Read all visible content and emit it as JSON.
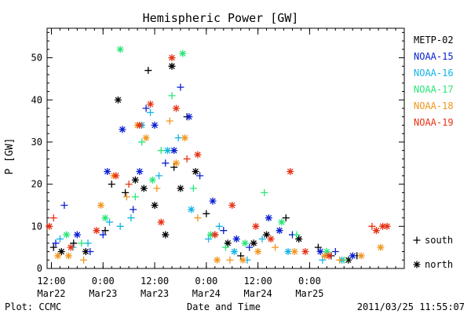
{
  "chart_data": {
    "type": "scatter",
    "title": "Hemispheric Power [GW]",
    "xlabel": "Date and Time",
    "ylabel": "P [GW]",
    "ylim": [
      0,
      57
    ],
    "xlim": [
      "2011-03-22T11:00",
      "2011-03-25T22:00"
    ],
    "grid": false,
    "legend_position": "right",
    "x_ticks": [
      {
        "time": "2011-03-22T12:00",
        "line1": "12:00",
        "line2": "Mar22"
      },
      {
        "time": "2011-03-23T00:00",
        "line1": "0:00",
        "line2": "Mar23"
      },
      {
        "time": "2011-03-23T12:00",
        "line1": "12:00",
        "line2": "Mar23"
      },
      {
        "time": "2011-03-24T00:00",
        "line1": "0:00",
        "line2": "Mar24"
      },
      {
        "time": "2011-03-24T12:00",
        "line1": "12:00",
        "line2": "Mar24"
      },
      {
        "time": "2011-03-25T00:00",
        "line1": "0:00",
        "line2": "Mar25"
      }
    ],
    "y_ticks": [
      0,
      10,
      20,
      30,
      40,
      50
    ],
    "marker_legend": [
      {
        "marker": "+",
        "label": "south"
      },
      {
        "marker": "*",
        "label": "north"
      }
    ],
    "series": [
      {
        "name": "METP-02",
        "color": "#000000",
        "points": [
          [
            "2011-03-22T12:30",
            5,
            "+"
          ],
          [
            "2011-03-22T14:20",
            4,
            "*"
          ],
          [
            "2011-03-22T17:10",
            6,
            "+"
          ],
          [
            "2011-03-22T20:00",
            4,
            "*"
          ],
          [
            "2011-03-23T00:30",
            9,
            "+"
          ],
          [
            "2011-03-23T02:00",
            20,
            "+"
          ],
          [
            "2011-03-23T03:30",
            40,
            "*"
          ],
          [
            "2011-03-23T05:10",
            18,
            "+"
          ],
          [
            "2011-03-23T07:30",
            21,
            "*"
          ],
          [
            "2011-03-23T09:30",
            19,
            "*"
          ],
          [
            "2011-03-23T10:30",
            47,
            "+"
          ],
          [
            "2011-03-23T12:00",
            15,
            "*"
          ],
          [
            "2011-03-23T14:30",
            8,
            "*"
          ],
          [
            "2011-03-23T16:00",
            48,
            "*"
          ],
          [
            "2011-03-23T16:30",
            24,
            "+"
          ],
          [
            "2011-03-23T18:00",
            19,
            "*"
          ],
          [
            "2011-03-23T19:30",
            36,
            "+"
          ],
          [
            "2011-03-23T21:30",
            23,
            "*"
          ],
          [
            "2011-03-24T00:00",
            13,
            "+"
          ],
          [
            "2011-03-24T02:00",
            8,
            "+"
          ],
          [
            "2011-03-24T05:00",
            6,
            "*"
          ],
          [
            "2011-03-24T08:00",
            3,
            "+"
          ],
          [
            "2011-03-24T11:00",
            6,
            "*"
          ],
          [
            "2011-03-24T14:00",
            8,
            "*"
          ],
          [
            "2011-03-24T18:30",
            12,
            "+"
          ],
          [
            "2011-03-24T21:30",
            7,
            "*"
          ],
          [
            "2011-03-25T02:00",
            5,
            "+"
          ],
          [
            "2011-03-25T05:00",
            3,
            "+"
          ],
          [
            "2011-03-25T09:00",
            2,
            "*"
          ],
          [
            "2011-03-25T11:00",
            3,
            "+"
          ]
        ]
      },
      {
        "name": "NOAA-15",
        "color": "#0a1ed2",
        "points": [
          [
            "2011-03-22T13:00",
            6,
            "+"
          ],
          [
            "2011-03-22T15:00",
            15,
            "+"
          ],
          [
            "2011-03-22T18:00",
            8,
            "*"
          ],
          [
            "2011-03-22T21:00",
            4,
            "+"
          ],
          [
            "2011-03-23T00:00",
            8,
            "+"
          ],
          [
            "2011-03-23T01:00",
            23,
            "*"
          ],
          [
            "2011-03-23T04:30",
            33,
            "*"
          ],
          [
            "2011-03-23T07:00",
            14,
            "+"
          ],
          [
            "2011-03-23T08:30",
            23,
            "*"
          ],
          [
            "2011-03-23T10:00",
            38,
            "+"
          ],
          [
            "2011-03-23T12:00",
            34,
            "*"
          ],
          [
            "2011-03-23T14:30",
            25,
            "+"
          ],
          [
            "2011-03-23T16:30",
            28,
            "*"
          ],
          [
            "2011-03-23T18:00",
            43,
            "+"
          ],
          [
            "2011-03-23T20:00",
            36,
            "*"
          ],
          [
            "2011-03-23T22:30",
            22,
            "+"
          ],
          [
            "2011-03-24T01:30",
            16,
            "*"
          ],
          [
            "2011-03-24T04:00",
            9,
            "+"
          ],
          [
            "2011-03-24T07:00",
            7,
            "*"
          ],
          [
            "2011-03-24T10:00",
            5,
            "+"
          ],
          [
            "2011-03-24T14:30",
            12,
            "*"
          ],
          [
            "2011-03-24T17:00",
            9,
            "*"
          ],
          [
            "2011-03-24T20:00",
            8,
            "+"
          ],
          [
            "2011-03-25T02:30",
            4,
            "*"
          ],
          [
            "2011-03-25T06:00",
            4,
            "+"
          ],
          [
            "2011-03-25T10:00",
            3,
            "*"
          ]
        ]
      },
      {
        "name": "NOAA-16",
        "color": "#14b4e6",
        "points": [
          [
            "2011-03-22T14:00",
            7,
            "+"
          ],
          [
            "2011-03-22T17:00",
            5,
            "+"
          ],
          [
            "2011-03-22T20:30",
            6,
            "+"
          ],
          [
            "2011-03-23T01:30",
            11,
            "+"
          ],
          [
            "2011-03-23T04:00",
            10,
            "+"
          ],
          [
            "2011-03-23T06:30",
            12,
            "+"
          ],
          [
            "2011-03-23T09:00",
            34,
            "*"
          ],
          [
            "2011-03-23T11:00",
            37,
            "+"
          ],
          [
            "2011-03-23T13:00",
            22,
            "+"
          ],
          [
            "2011-03-23T15:00",
            28,
            "*"
          ],
          [
            "2011-03-23T17:30",
            31,
            "+"
          ],
          [
            "2011-03-23T20:30",
            14,
            "*"
          ],
          [
            "2011-03-24T00:30",
            7,
            "+"
          ],
          [
            "2011-03-24T03:00",
            10,
            "+"
          ],
          [
            "2011-03-24T06:30",
            4,
            "*"
          ],
          [
            "2011-03-24T09:30",
            2,
            "+"
          ],
          [
            "2011-03-24T13:00",
            7,
            "+"
          ],
          [
            "2011-03-24T19:00",
            4,
            "*"
          ],
          [
            "2011-03-25T03:00",
            2,
            "+"
          ],
          [
            "2011-03-25T07:30",
            2,
            "*"
          ]
        ]
      },
      {
        "name": "NOAA-17",
        "color": "#28e678",
        "points": [
          [
            "2011-03-22T15:30",
            8,
            "*"
          ],
          [
            "2011-03-22T19:00",
            6,
            "+"
          ],
          [
            "2011-03-23T00:30",
            12,
            "*"
          ],
          [
            "2011-03-23T04:00",
            52,
            "*"
          ],
          [
            "2011-03-23T07:30",
            17,
            "+"
          ],
          [
            "2011-03-23T09:00",
            30,
            "+"
          ],
          [
            "2011-03-23T11:30",
            21,
            "*"
          ],
          [
            "2011-03-23T13:30",
            28,
            "+"
          ],
          [
            "2011-03-23T16:00",
            41,
            "+"
          ],
          [
            "2011-03-23T18:30",
            51,
            "*"
          ],
          [
            "2011-03-23T21:00",
            19,
            "+"
          ],
          [
            "2011-03-24T01:00",
            8,
            "*"
          ],
          [
            "2011-03-24T04:30",
            5,
            "+"
          ],
          [
            "2011-03-24T09:00",
            6,
            "*"
          ],
          [
            "2011-03-24T13:30",
            18,
            "+"
          ],
          [
            "2011-03-24T17:30",
            11,
            "*"
          ],
          [
            "2011-03-24T21:00",
            8,
            "+"
          ],
          [
            "2011-03-25T04:00",
            4,
            "*"
          ],
          [
            "2011-03-25T08:00",
            2,
            "+"
          ]
        ]
      },
      {
        "name": "NOAA-18",
        "color": "#f0961e",
        "points": [
          [
            "2011-03-22T13:30",
            3,
            "*"
          ],
          [
            "2011-03-22T16:00",
            3,
            "*"
          ],
          [
            "2011-03-22T19:30",
            2,
            "+"
          ],
          [
            "2011-03-22T23:30",
            15,
            "*"
          ],
          [
            "2011-03-23T02:30",
            22,
            "*"
          ],
          [
            "2011-03-23T05:30",
            17,
            "+"
          ],
          [
            "2011-03-23T08:00",
            34,
            "*"
          ],
          [
            "2011-03-23T10:00",
            31,
            "*"
          ],
          [
            "2011-03-23T12:30",
            19,
            "+"
          ],
          [
            "2011-03-23T15:30",
            35,
            "+"
          ],
          [
            "2011-03-23T17:00",
            25,
            "*"
          ],
          [
            "2011-03-23T19:00",
            31,
            "*"
          ],
          [
            "2011-03-23T22:00",
            12,
            "+"
          ],
          [
            "2011-03-24T02:30",
            2,
            "*"
          ],
          [
            "2011-03-24T05:30",
            2,
            "+"
          ],
          [
            "2011-03-24T08:30",
            2,
            "*"
          ],
          [
            "2011-03-24T12:00",
            4,
            "*"
          ],
          [
            "2011-03-24T16:00",
            5,
            "+"
          ],
          [
            "2011-03-24T20:30",
            4,
            "*"
          ],
          [
            "2011-03-25T03:30",
            3,
            "*"
          ],
          [
            "2011-03-25T07:00",
            2,
            "+"
          ],
          [
            "2011-03-25T12:00",
            3,
            "*"
          ],
          [
            "2011-03-25T16:30",
            5,
            "*"
          ]
        ]
      },
      {
        "name": "NOAA-19",
        "color": "#e63214",
        "points": [
          [
            "2011-03-22T11:30",
            10,
            "*"
          ],
          [
            "2011-03-22T12:30",
            12,
            "+"
          ],
          [
            "2011-03-22T16:30",
            5,
            "*"
          ],
          [
            "2011-03-22T22:30",
            9,
            "*"
          ],
          [
            "2011-03-23T03:00",
            22,
            "*"
          ],
          [
            "2011-03-23T06:00",
            20,
            "+"
          ],
          [
            "2011-03-23T08:30",
            34,
            "*"
          ],
          [
            "2011-03-23T11:00",
            39,
            "*"
          ],
          [
            "2011-03-23T13:30",
            11,
            "*"
          ],
          [
            "2011-03-23T16:00",
            50,
            "*"
          ],
          [
            "2011-03-23T17:00",
            38,
            "*"
          ],
          [
            "2011-03-23T19:30",
            26,
            "+"
          ],
          [
            "2011-03-23T22:00",
            27,
            "*"
          ],
          [
            "2011-03-24T02:00",
            8,
            "*"
          ],
          [
            "2011-03-24T06:00",
            15,
            "*"
          ],
          [
            "2011-03-24T11:30",
            10,
            "*"
          ],
          [
            "2011-03-24T15:00",
            7,
            "*"
          ],
          [
            "2011-03-24T19:30",
            23,
            "*"
          ],
          [
            "2011-03-24T23:00",
            4,
            "*"
          ],
          [
            "2011-03-25T04:30",
            3,
            "*"
          ],
          [
            "2011-03-25T14:30",
            10,
            "+"
          ],
          [
            "2011-03-25T15:30",
            9,
            "*"
          ],
          [
            "2011-03-25T17:00",
            10,
            "*"
          ],
          [
            "2011-03-25T18:00",
            10,
            "*"
          ]
        ]
      }
    ]
  },
  "footer": {
    "source": "Plot: CCMC",
    "timestamp": "2011/03/25 11:55:07"
  }
}
